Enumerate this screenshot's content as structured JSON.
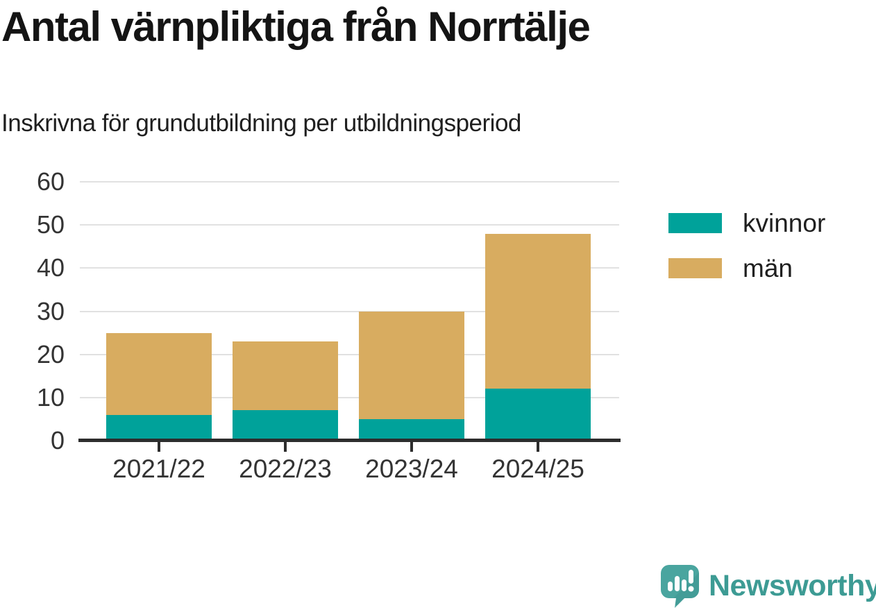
{
  "chart_data": {
    "type": "bar",
    "stacked": true,
    "title": "Antal värnpliktiga från Norrtälje",
    "subtitle": "Inskrivna för grundutbildning per utbildningsperiod",
    "categories": [
      "2021/22",
      "2022/23",
      "2023/24",
      "2024/25"
    ],
    "series": [
      {
        "name": "kvinnor",
        "color": "#00a29a",
        "values": [
          6,
          7,
          5,
          12
        ]
      },
      {
        "name": "män",
        "color": "#d8ac60",
        "values": [
          19,
          16,
          25,
          36
        ]
      }
    ],
    "stacked_totals": [
      25,
      23,
      30,
      48
    ],
    "xlabel": "",
    "ylabel": "",
    "ylim": [
      0,
      60
    ],
    "yticks": [
      0,
      10,
      20,
      30,
      40,
      50,
      60
    ],
    "grid": true,
    "legend_position": "right-of-plot"
  },
  "legend": {
    "items": [
      {
        "label": "kvinnor",
        "color": "#00a29a"
      },
      {
        "label": "män",
        "color": "#d8ac60"
      }
    ]
  },
  "footer": {
    "brand": "Newsworthy",
    "brand_color": "#3d9b94",
    "icon": "newsworthy-logo-icon"
  },
  "colors": {
    "kvinnor": "#00a29a",
    "man": "#d8ac60",
    "grid": "#e1e1e1",
    "axis": "#2d2d2d",
    "title_text": "#141414",
    "axis_text": "#333333"
  }
}
